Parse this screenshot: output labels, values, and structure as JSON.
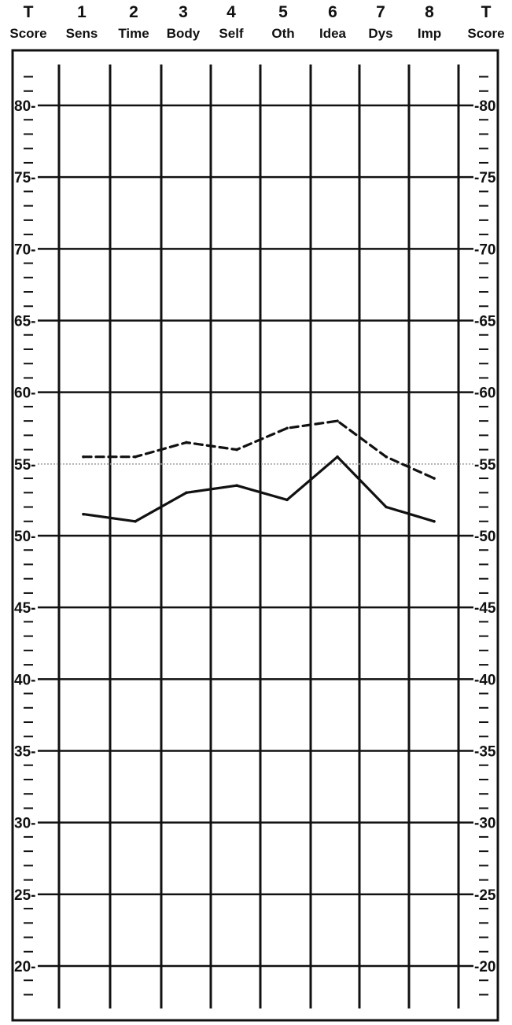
{
  "chart_data": {
    "type": "line",
    "header": {
      "left": {
        "mark": "T",
        "label": "Score"
      },
      "right": {
        "mark": "T",
        "label": "Score"
      }
    },
    "categories": [
      {
        "number": "1",
        "label": "Sens"
      },
      {
        "number": "2",
        "label": "Time"
      },
      {
        "number": "3",
        "label": "Body"
      },
      {
        "number": "4",
        "label": "Self"
      },
      {
        "number": "5",
        "label": "Oth"
      },
      {
        "number": "6",
        "label": "Idea"
      },
      {
        "number": "7",
        "label": "Dys"
      },
      {
        "number": "8",
        "label": "Imp"
      }
    ],
    "ylim": [
      18,
      82
    ],
    "yticks": [
      20,
      25,
      30,
      35,
      40,
      45,
      50,
      55,
      60,
      65,
      70,
      75,
      80
    ],
    "y_tick_labels": [
      "20",
      "25",
      "30",
      "35",
      "40",
      "45",
      "50",
      "55",
      "60",
      "65",
      "70",
      "75",
      "80"
    ],
    "reference_line": 55,
    "grid": true,
    "series": [
      {
        "style": "dashed",
        "values": [
          55.5,
          55.5,
          56.5,
          56.0,
          57.5,
          58.0,
          55.5,
          54.0
        ]
      },
      {
        "style": "solid",
        "values": [
          51.5,
          51.0,
          53.0,
          53.5,
          52.5,
          55.5,
          52.0,
          51.0
        ]
      }
    ],
    "colors": {
      "ink": "#111111",
      "reference": "#999999",
      "paper": "#ffffff"
    }
  }
}
